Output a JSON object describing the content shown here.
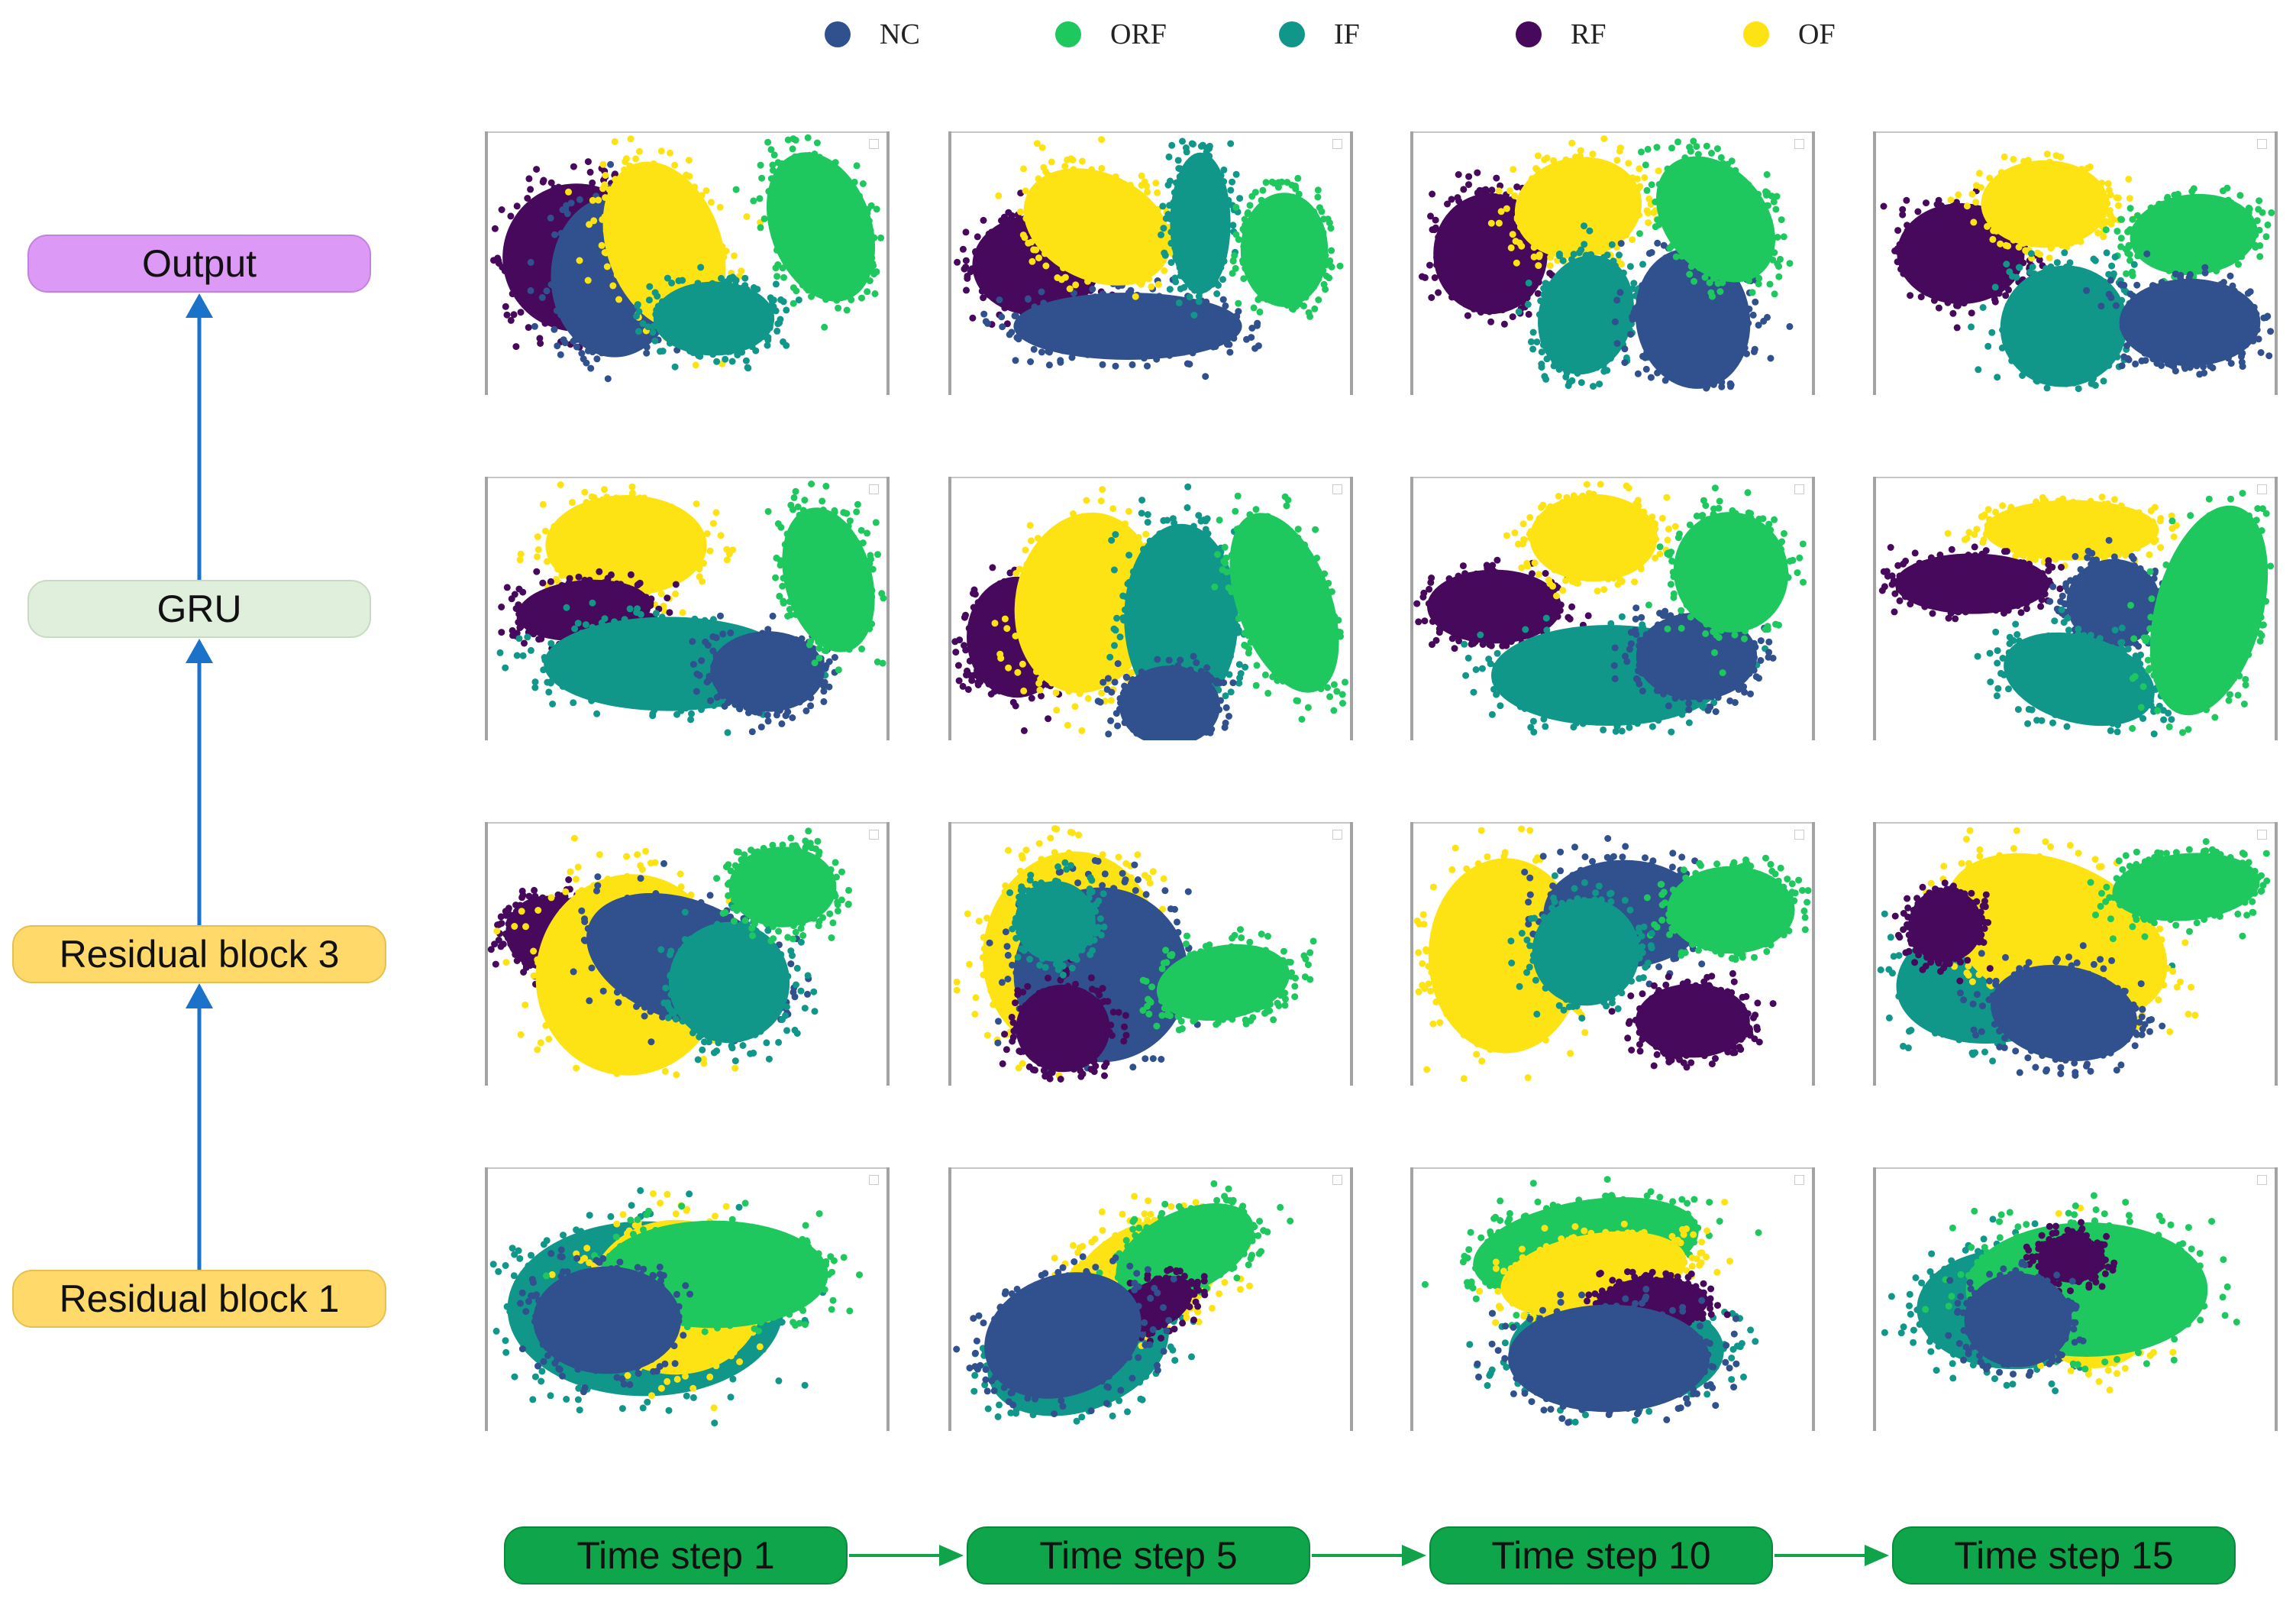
{
  "legend": [
    {
      "label": "NC",
      "color": "#30508e"
    },
    {
      "label": "ORF",
      "color": "#1ec85e"
    },
    {
      "label": "IF",
      "color": "#11968a"
    },
    {
      "label": "RF",
      "color": "#46095c"
    },
    {
      "label": "OF",
      "color": "#fde313"
    }
  ],
  "stages": {
    "output": "Output",
    "gru": "GRU",
    "residual3": "Residual block 3",
    "residual1": "Residual block 1"
  },
  "timesteps": [
    "Time step 1",
    "Time step 5",
    "Time step 10",
    "Time step 15"
  ],
  "colors": {
    "arrow_blue": "#1a73c8",
    "arrow_green": "#11a34a",
    "output_fill": "#dd99f6",
    "gru_fill": "#e0eedc",
    "residual_fill": "#ffd96a",
    "timestep_fill": "#0fa64b"
  }
}
